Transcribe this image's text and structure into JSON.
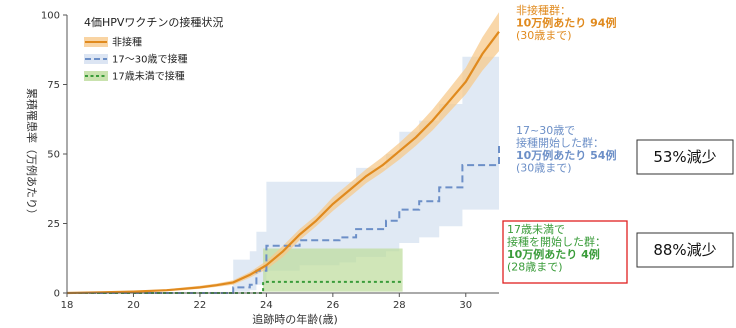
{
  "chart_data": {
    "type": "line",
    "title": "4価HPVワクチンの接種状況",
    "xlabel": "追跡時の年齢(歳)",
    "ylabel": "累積罹患率（万例あたり）",
    "xlim": [
      18,
      31
    ],
    "ylim": [
      0,
      100
    ],
    "xticks": [
      "18",
      "20",
      "22",
      "24",
      "26",
      "28",
      "30"
    ],
    "yticks": [
      "0",
      "25",
      "50",
      "75",
      "100"
    ],
    "grid": false,
    "legend_position": "top-left",
    "series": [
      {
        "name": "非接種",
        "style": "solid",
        "color": "#e08a1e",
        "band_color": "#f7c98c",
        "x": [
          18,
          19,
          20,
          21,
          21.5,
          22,
          22.5,
          23,
          23.5,
          24,
          24.5,
          25,
          25.5,
          26,
          26.5,
          27,
          27.5,
          28,
          28.5,
          29,
          29.5,
          30,
          30.5,
          31
        ],
        "y": [
          0,
          0.2,
          0.5,
          1,
          1.5,
          2,
          2.8,
          3.8,
          6.5,
          10,
          15,
          21,
          26,
          32,
          37,
          42,
          46,
          51,
          56,
          62,
          69,
          76,
          86,
          94
        ],
        "lower": [
          0,
          0,
          0.3,
          0.7,
          1,
          1.5,
          2.2,
          3,
          5.5,
          8.5,
          13,
          19,
          24,
          29.5,
          34.5,
          39.5,
          43.5,
          48,
          53,
          58.5,
          65,
          71.5,
          80,
          87
        ],
        "upper": [
          0,
          0.5,
          0.8,
          1.3,
          2,
          2.6,
          3.4,
          4.6,
          7.5,
          11.5,
          17,
          23,
          28,
          34.5,
          39.5,
          44.5,
          49,
          54,
          59.5,
          66,
          73.5,
          81,
          92,
          101
        ]
      },
      {
        "name": "17～30歳で接種",
        "style": "dashed",
        "color": "#6c8fc7",
        "band_color": "#d3dff0",
        "x": [
          18,
          22.6,
          23,
          23.5,
          23.7,
          24,
          25,
          26.2,
          26.7,
          27.6,
          28,
          28.6,
          29.2,
          29.9,
          31
        ],
        "y": [
          0,
          0,
          2,
          3,
          8,
          17,
          19,
          20,
          23,
          26,
          30,
          33,
          38,
          46,
          54
        ],
        "lower": [
          0,
          0,
          0.5,
          1,
          3,
          8,
          10,
          11,
          13,
          15,
          18,
          20,
          24,
          30,
          37
        ],
        "upper": [
          0,
          0,
          12,
          15,
          22,
          40,
          40,
          40,
          45,
          50,
          58,
          62,
          68,
          85,
          85
        ]
      },
      {
        "name": "17歳未満で接種",
        "style": "dotted",
        "color": "#3a9c3a",
        "band_color": "#bcdb9a",
        "x": [
          18,
          23.8,
          23.9,
          28.1
        ],
        "y": [
          0,
          0,
          4,
          4
        ],
        "lower": [
          0,
          0,
          0.5,
          0.5
        ],
        "upper": [
          0,
          0,
          16,
          16
        ]
      }
    ],
    "annotations": [
      {
        "lines": [
          "非接種群：",
          "10万例あたり 94例",
          "(30歳まで)"
        ],
        "bold": [
          false,
          true,
          false
        ],
        "color": "#e08a1e"
      },
      {
        "lines": [
          "17~30歳で",
          "接種開始した群：",
          "10万例あたり 54例",
          "(30歳まで)"
        ],
        "bold": [
          false,
          false,
          true,
          false
        ],
        "color": "#6c8fc7"
      },
      {
        "lines": [
          "17歳未満で",
          "接種を開始した群：",
          "10万例あたり 4例",
          "(28歳まで)"
        ],
        "bold": [
          false,
          false,
          true,
          false
        ],
        "color": "#3a9c3a"
      }
    ],
    "reduction_boxes": [
      "53%減少",
      "88%減少"
    ]
  }
}
